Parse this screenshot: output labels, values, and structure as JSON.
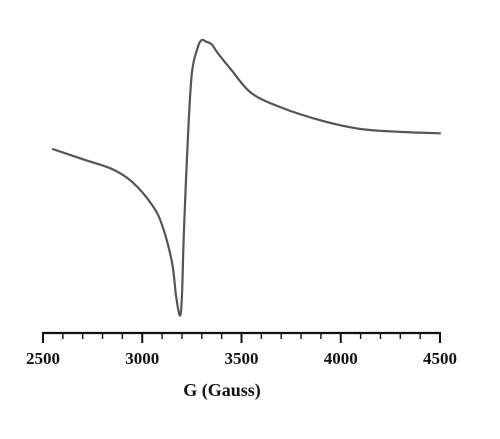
{
  "chart_data": {
    "type": "line",
    "title": "",
    "xlabel": "G (Gauss)",
    "ylabel": "",
    "xlim": [
      2500,
      4500
    ],
    "ylim": [
      -1.0,
      1.0
    ],
    "xticks": [
      "2500",
      "3000",
      "3500",
      "4000",
      "4500"
    ],
    "grid": false,
    "line_color": "#555555",
    "series": [
      {
        "x": [
          2550,
          2700,
          2850,
          2950,
          3050,
          3100,
          3150,
          3170,
          3190,
          3200,
          3210,
          3230,
          3250,
          3280,
          3300,
          3320,
          3350,
          3380,
          3450,
          3550,
          3700,
          3900,
          4100,
          4300,
          4500
        ],
        "y": [
          0.17,
          0.1,
          0.03,
          -0.06,
          -0.22,
          -0.36,
          -0.62,
          -0.85,
          -0.99,
          -0.85,
          -0.4,
          0.25,
          0.7,
          0.88,
          0.93,
          0.92,
          0.9,
          0.84,
          0.72,
          0.56,
          0.46,
          0.37,
          0.31,
          0.29,
          0.28
        ]
      }
    ]
  }
}
